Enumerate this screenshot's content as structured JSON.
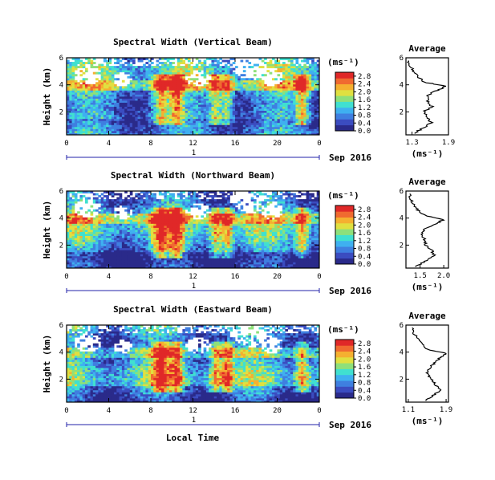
{
  "figure": {
    "xlabel": "Local Time",
    "date_label": "Sep 2016",
    "day_marker": "1",
    "ylabel": "Height (km)",
    "unit_label": "(ms⁻¹)",
    "average_title": "Average"
  },
  "chart_data": [
    {
      "type": "heatmap",
      "title": "Spectral Width (Vertical Beam)",
      "x_ticks": [
        "0",
        "4",
        "8",
        "12",
        "16",
        "20",
        "0"
      ],
      "x_range_hours": [
        0,
        24
      ],
      "y_ticks": [
        "2",
        "4",
        "6"
      ],
      "y_range_km": [
        0.3,
        6.0
      ],
      "colorbar_ticks": [
        "0.0",
        "0.4",
        "0.8",
        "1.2",
        "1.6",
        "2.0",
        "2.4",
        "2.8"
      ],
      "colorbar_range": [
        0.0,
        3.0
      ],
      "average_profile": {
        "x_ticks": [
          "1.3",
          "1.9"
        ],
        "x_range": [
          1.2,
          1.9
        ],
        "height_km": [
          0.4,
          0.8,
          1.2,
          1.6,
          2.0,
          2.4,
          2.8,
          3.2,
          3.6,
          3.9,
          4.2,
          4.6,
          5.0,
          5.4,
          5.8
        ],
        "width": [
          1.32,
          1.48,
          1.62,
          1.55,
          1.5,
          1.62,
          1.56,
          1.55,
          1.72,
          1.86,
          1.5,
          1.4,
          1.32,
          1.27,
          1.24
        ]
      }
    },
    {
      "type": "heatmap",
      "title": "Spectral Width (Northward Beam)",
      "x_ticks": [
        "0",
        "4",
        "8",
        "12",
        "16",
        "20",
        "0"
      ],
      "x_range_hours": [
        0,
        24
      ],
      "y_ticks": [
        "2",
        "4",
        "6"
      ],
      "y_range_km": [
        0.3,
        6.0
      ],
      "colorbar_ticks": [
        "0.0",
        "0.4",
        "0.8",
        "1.2",
        "1.6",
        "2.0",
        "2.4",
        "2.8"
      ],
      "colorbar_range": [
        0.0,
        3.0
      ],
      "average_profile": {
        "x_ticks": [
          "1.5",
          "2.0"
        ],
        "x_range": [
          1.2,
          2.1
        ],
        "height_km": [
          0.4,
          0.8,
          1.2,
          1.6,
          2.0,
          2.4,
          2.8,
          3.2,
          3.6,
          3.9,
          4.2,
          4.6,
          5.0,
          5.4,
          5.8
        ],
        "width": [
          1.4,
          1.6,
          1.8,
          1.75,
          1.62,
          1.6,
          1.52,
          1.6,
          1.85,
          2.0,
          1.6,
          1.45,
          1.36,
          1.3,
          1.28
        ]
      }
    },
    {
      "type": "heatmap",
      "title": "Spectral Width (Eastward Beam)",
      "x_ticks": [
        "0",
        "4",
        "8",
        "12",
        "16",
        "20",
        "0"
      ],
      "x_range_hours": [
        0,
        24
      ],
      "y_ticks": [
        "2",
        "4",
        "6"
      ],
      "y_range_km": [
        0.3,
        6.0
      ],
      "colorbar_ticks": [
        "0.0",
        "0.4",
        "0.8",
        "1.2",
        "1.6",
        "2.0",
        "2.4",
        "2.8"
      ],
      "colorbar_range": [
        0.0,
        3.0
      ],
      "average_profile": {
        "x_ticks": [
          "1.1",
          "1.9"
        ],
        "x_range": [
          1.05,
          1.95
        ],
        "height_km": [
          0.4,
          0.8,
          1.2,
          1.6,
          2.0,
          2.4,
          2.8,
          3.2,
          3.6,
          3.9,
          4.2,
          4.6,
          5.0,
          5.4,
          5.8
        ],
        "width": [
          1.45,
          1.62,
          1.78,
          1.68,
          1.6,
          1.5,
          1.55,
          1.65,
          1.78,
          1.9,
          1.5,
          1.38,
          1.3,
          1.22,
          1.18
        ]
      }
    }
  ],
  "colors": {
    "colormap": [
      "#2a2a8a",
      "#3b4cc0",
      "#3f7fe0",
      "#3fb0f0",
      "#40e0d0",
      "#8ee07a",
      "#e0e040",
      "#f5b030",
      "#f06a30",
      "#e02828"
    ],
    "missing": "#ffffff",
    "day_axis": "#2222aa"
  }
}
